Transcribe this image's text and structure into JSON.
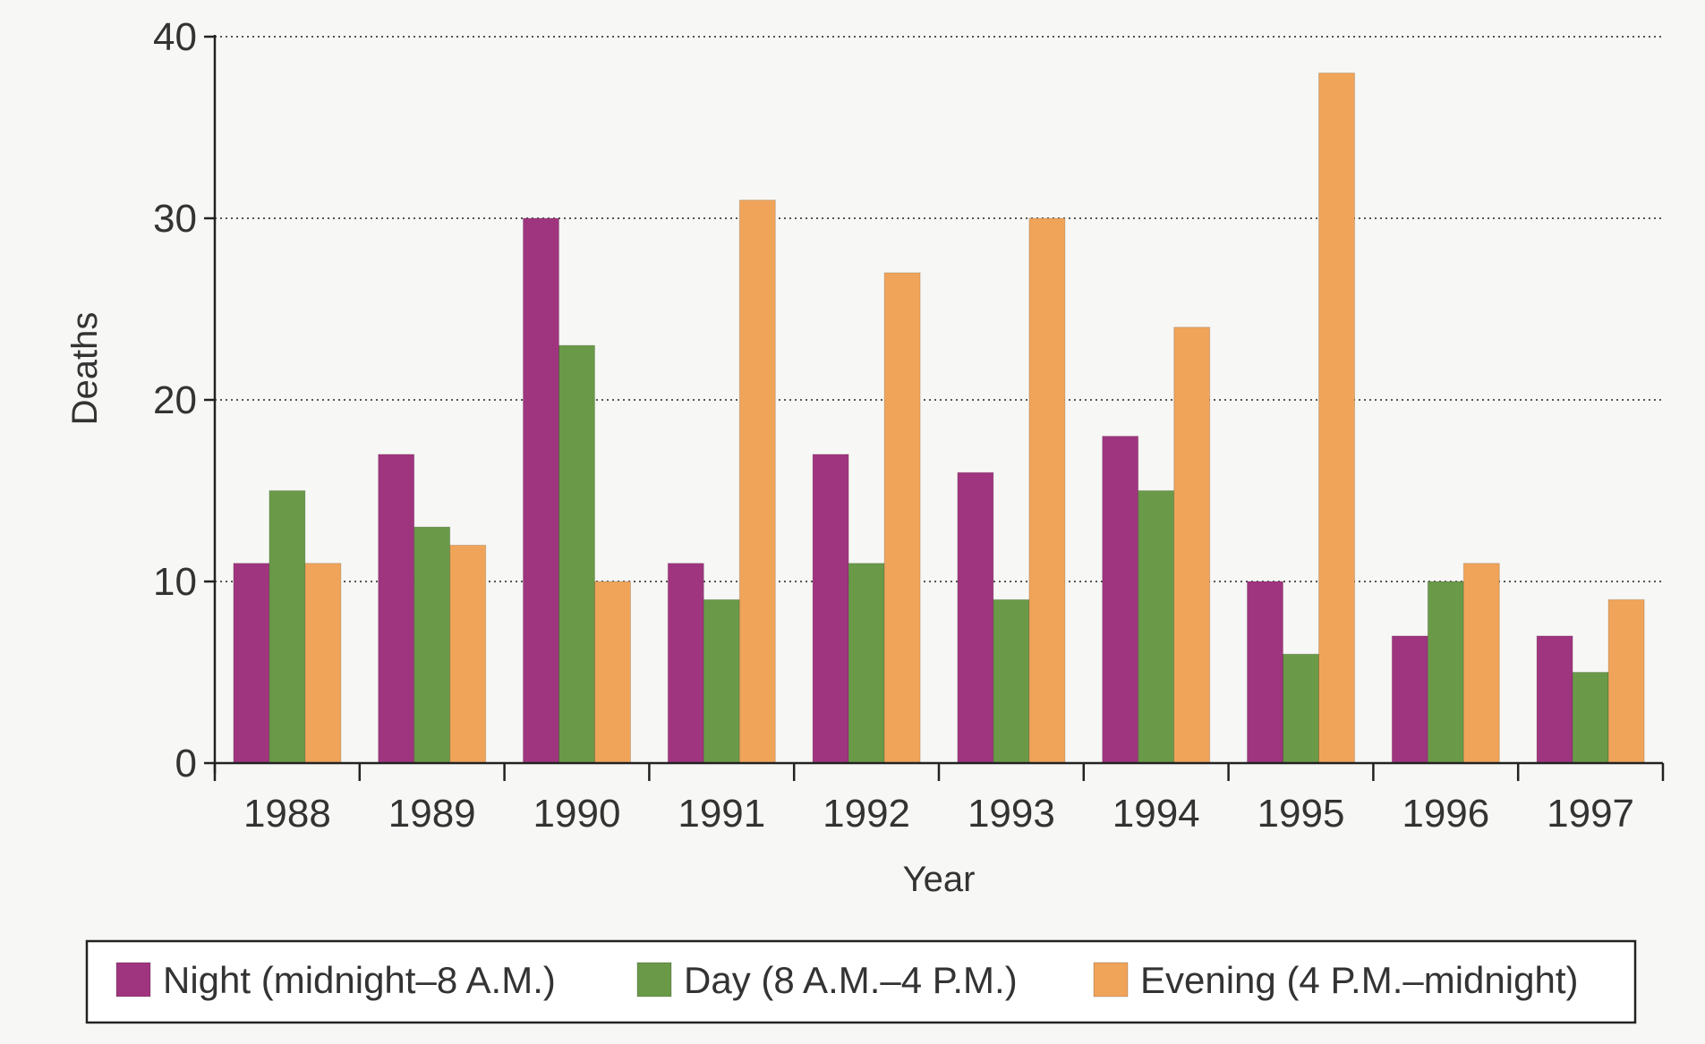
{
  "chart_data": {
    "type": "bar",
    "title": "",
    "xlabel": "Year",
    "ylabel": "Deaths",
    "ylim": [
      0,
      40
    ],
    "yticks": [
      0,
      10,
      20,
      30,
      40
    ],
    "grid": "horizontal dotted",
    "legend_position": "bottom",
    "categories": [
      "1988",
      "1989",
      "1990",
      "1991",
      "1992",
      "1993",
      "1994",
      "1995",
      "1996",
      "1997"
    ],
    "series": [
      {
        "name": "Night (midnight–8 A.M.)",
        "color": "#a0357f",
        "values": [
          11,
          17,
          30,
          11,
          17,
          16,
          18,
          10,
          7,
          7
        ]
      },
      {
        "name": "Day (8 A.M.–4 P.M.)",
        "color": "#6a9a48",
        "values": [
          15,
          13,
          23,
          9,
          11,
          9,
          15,
          6,
          10,
          5
        ]
      },
      {
        "name": "Evening (4 P.M.–midnight)",
        "color": "#f0a45a",
        "values": [
          11,
          12,
          10,
          31,
          27,
          30,
          24,
          38,
          11,
          9
        ]
      }
    ]
  }
}
